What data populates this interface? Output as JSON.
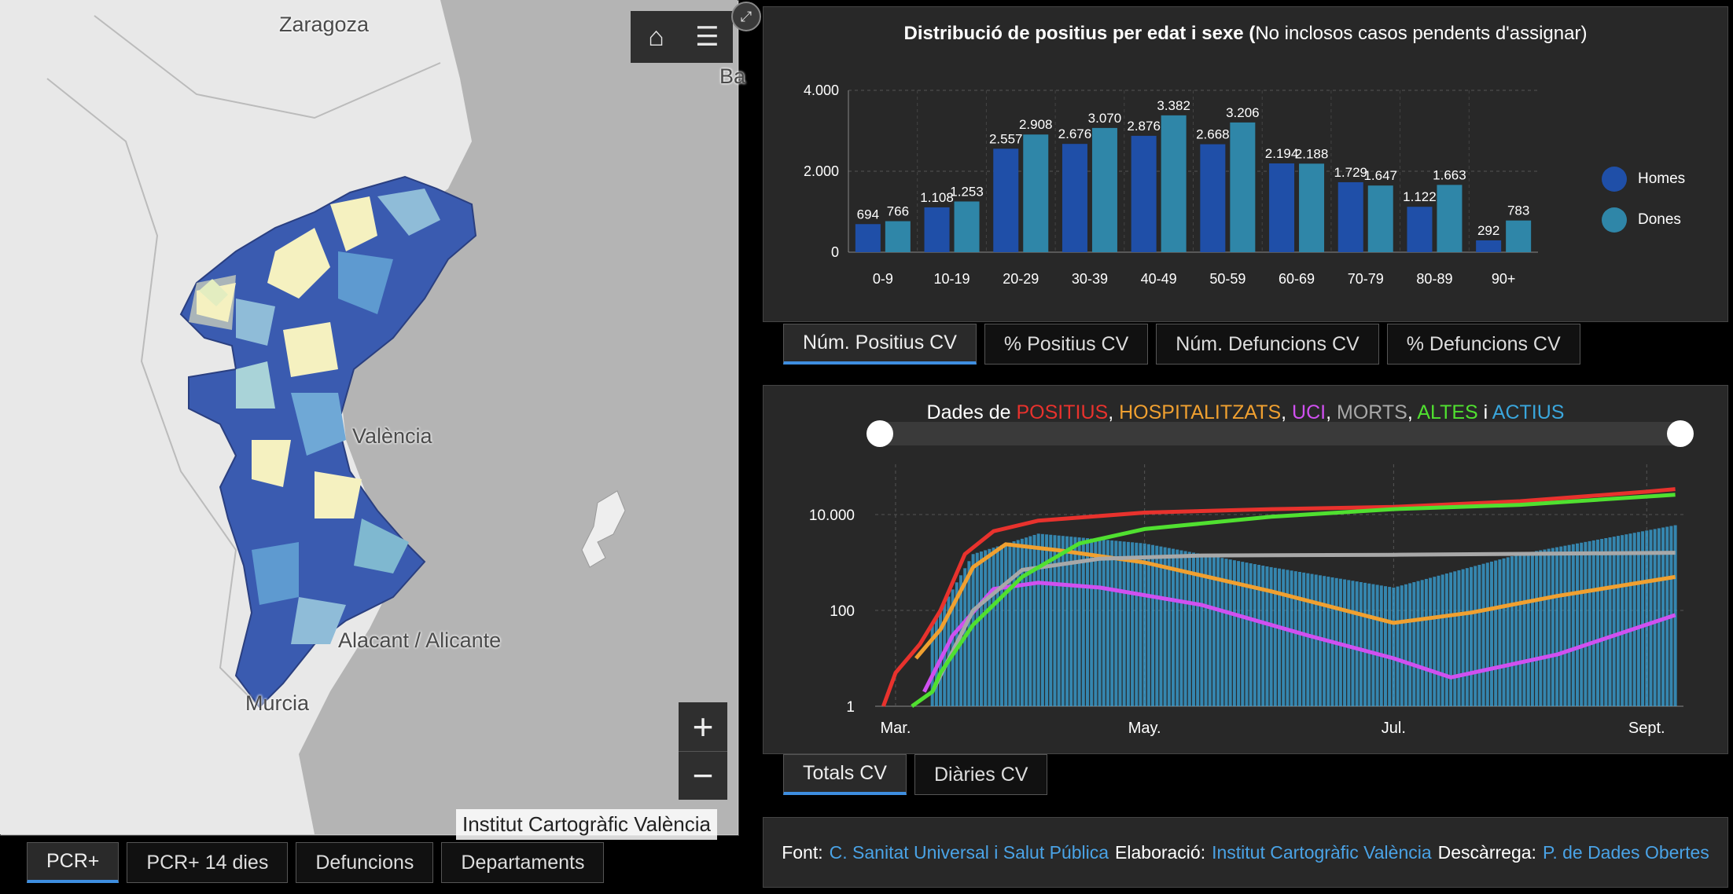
{
  "map": {
    "cities": [
      "Zaragoza",
      "València",
      "Alacant / Alicante",
      "Murcia",
      "Ba"
    ],
    "attribution": "Institut Cartogràfic València",
    "zoom_in": "+",
    "zoom_out": "−",
    "home_icon": "home-icon",
    "layers_icon": "layer-list-icon",
    "expand_icon": "expand-icon"
  },
  "map_tabs": [
    "PCR+",
    "PCR+ 14 dies",
    "Defuncions",
    "Departaments"
  ],
  "age_chart": {
    "title_bold": "Distribució de positius per edat i sexe (",
    "title_rest": "No inclosos casos pendents d'assignar)",
    "legend": [
      "Homes",
      "Dones"
    ],
    "tabs": [
      "Núm. Positius CV",
      "% Positius CV",
      "Núm. Defuncions CV",
      "% Defuncions CV"
    ]
  },
  "cum_chart": {
    "title_parts": [
      {
        "text": "Dades de ",
        "color": "#ffffff"
      },
      {
        "text": "POSITIUS",
        "color": "#e8322d"
      },
      {
        "text": ", ",
        "color": "#ffffff"
      },
      {
        "text": "HOSPITALITZATS",
        "color": "#f0a030"
      },
      {
        "text": ", ",
        "color": "#ffffff"
      },
      {
        "text": "UCI",
        "color": "#d050f0"
      },
      {
        "text": ", ",
        "color": "#ffffff"
      },
      {
        "text": "MORTS",
        "color": "#a8a8a8"
      },
      {
        "text": ", ",
        "color": "#ffffff"
      },
      {
        "text": "ALTES",
        "color": "#50e030"
      },
      {
        "text": " i ",
        "color": "#ffffff"
      },
      {
        "text": "ACTIUS",
        "color": "#3aa6dc"
      }
    ],
    "tabs": [
      "Totals CV",
      "Diàries CV"
    ]
  },
  "footer": {
    "font_label": "Font:",
    "font_link": "C. Sanitat Universal i Salut Pública",
    "elab_label": "Elaboració:",
    "elab_link": "Institut Cartogràfic València",
    "desc_label": "Descàrrega:",
    "desc_link": "P. de Dades Obertes"
  },
  "chart_data": [
    {
      "type": "bar",
      "title": "Distribució de positius per edat i sexe (No inclosos casos pendents d'assignar)",
      "categories": [
        "0-9",
        "10-19",
        "20-29",
        "30-39",
        "40-49",
        "50-59",
        "60-69",
        "70-79",
        "80-89",
        "90+"
      ],
      "series": [
        {
          "name": "Homes",
          "color": "#1f4fa8",
          "values": [
            694,
            1108,
            2557,
            2676,
            2876,
            2668,
            2194,
            1729,
            1122,
            292
          ],
          "labels": [
            "694",
            "1.108",
            "2.557",
            "2.676",
            "2.876",
            "2.668",
            "2.194",
            "1.729",
            "1.122",
            "292"
          ]
        },
        {
          "name": "Dones",
          "color": "#2f86a8",
          "values": [
            766,
            1253,
            2908,
            3070,
            3382,
            3206,
            2188,
            1647,
            1663,
            783
          ],
          "labels": [
            "766",
            "1.253",
            "2.908",
            "3.070",
            "3.382",
            "3.206",
            "2.188",
            "1.647",
            "1.663",
            "783"
          ]
        }
      ],
      "ylim": [
        0,
        4000
      ],
      "yticks": [
        0,
        2000,
        4000
      ],
      "ytick_labels": [
        "0",
        "2.000",
        "4.000"
      ],
      "grid": true,
      "legend_position": "right"
    },
    {
      "type": "line",
      "y_scale": "log",
      "yticks": [
        1,
        100,
        10000
      ],
      "ytick_labels": [
        "1",
        "100",
        "10.000"
      ],
      "xticks": [
        "Mar.",
        "May.",
        "Jul.",
        "Sept."
      ],
      "x_range": [
        "2020-02-25",
        "2020-09-10"
      ],
      "series": [
        {
          "name": "POSITIUS",
          "color": "#e8322d",
          "points": [
            [
              "2020-02-27",
              1
            ],
            [
              "2020-03-01",
              5
            ],
            [
              "2020-03-07",
              20
            ],
            [
              "2020-03-12",
              100
            ],
            [
              "2020-03-18",
              1500
            ],
            [
              "2020-03-25",
              4500
            ],
            [
              "2020-04-05",
              7500
            ],
            [
              "2020-05-01",
              11000
            ],
            [
              "2020-06-01",
              13000
            ],
            [
              "2020-07-01",
              14500
            ],
            [
              "2020-08-01",
              19000
            ],
            [
              "2020-09-01",
              30000
            ],
            [
              "2020-09-08",
              34000
            ]
          ]
        },
        {
          "name": "HOSPITALITZATS",
          "color": "#f0a030",
          "points": [
            [
              "2020-03-06",
              10
            ],
            [
              "2020-03-12",
              40
            ],
            [
              "2020-03-20",
              800
            ],
            [
              "2020-03-28",
              2400
            ],
            [
              "2020-04-10",
              1800
            ],
            [
              "2020-05-01",
              1000
            ],
            [
              "2020-06-01",
              250
            ],
            [
              "2020-07-01",
              55
            ],
            [
              "2020-07-20",
              90
            ],
            [
              "2020-08-10",
              200
            ],
            [
              "2020-09-08",
              500
            ]
          ]
        },
        {
          "name": "UCI",
          "color": "#d050f0",
          "points": [
            [
              "2020-03-08",
              2
            ],
            [
              "2020-03-15",
              30
            ],
            [
              "2020-03-25",
              280
            ],
            [
              "2020-04-05",
              380
            ],
            [
              "2020-04-20",
              300
            ],
            [
              "2020-05-15",
              130
            ],
            [
              "2020-06-10",
              30
            ],
            [
              "2020-07-01",
              10
            ],
            [
              "2020-07-15",
              4
            ],
            [
              "2020-08-10",
              12
            ],
            [
              "2020-09-08",
              80
            ]
          ]
        },
        {
          "name": "MORTS",
          "color": "#a8a8a8",
          "points": [
            [
              "2020-03-10",
              2
            ],
            [
              "2020-03-20",
              100
            ],
            [
              "2020-04-01",
              700
            ],
            [
              "2020-04-20",
              1200
            ],
            [
              "2020-05-15",
              1400
            ],
            [
              "2020-07-01",
              1450
            ],
            [
              "2020-09-08",
              1600
            ]
          ]
        },
        {
          "name": "ALTES",
          "color": "#50e030",
          "points": [
            [
              "2020-03-05",
              1
            ],
            [
              "2020-03-10",
              2
            ],
            [
              "2020-03-12",
              5
            ],
            [
              "2020-03-20",
              50
            ],
            [
              "2020-04-01",
              500
            ],
            [
              "2020-04-15",
              2500
            ],
            [
              "2020-05-01",
              5000
            ],
            [
              "2020-06-01",
              9000
            ],
            [
              "2020-07-01",
              13000
            ],
            [
              "2020-08-01",
              16000
            ],
            [
              "2020-09-08",
              26000
            ]
          ]
        },
        {
          "name": "ACTIUS",
          "color": "#3aa6dc",
          "points": [
            [
              "2020-03-10",
              50
            ],
            [
              "2020-03-20",
              1500
            ],
            [
              "2020-04-05",
              4000
            ],
            [
              "2020-05-01",
              2500
            ],
            [
              "2020-06-01",
              800
            ],
            [
              "2020-07-01",
              300
            ],
            [
              "2020-08-01",
              1500
            ],
            [
              "2020-09-08",
              6000
            ]
          ]
        }
      ],
      "grid": true
    }
  ]
}
